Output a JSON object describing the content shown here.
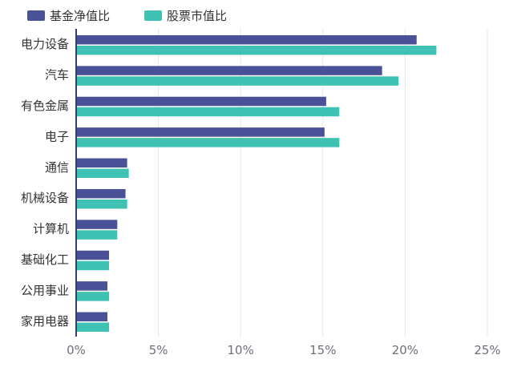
{
  "chart_data": {
    "type": "bar",
    "orientation": "horizontal",
    "categories": [
      "电力设备",
      "汽车",
      "有色金属",
      "电子",
      "通信",
      "机械设备",
      "计算机",
      "基础化工",
      "公用事业",
      "家用电器"
    ],
    "series": [
      {
        "name": "基金净值比",
        "color": "#4a5196",
        "values": [
          20.7,
          18.6,
          15.2,
          15.1,
          3.1,
          3.0,
          2.5,
          2.0,
          1.9,
          1.9
        ]
      },
      {
        "name": "股票市值比",
        "color": "#3fc1b3",
        "values": [
          21.9,
          19.6,
          16.0,
          16.0,
          3.2,
          3.1,
          2.5,
          2.0,
          2.0,
          2.0
        ]
      }
    ],
    "x_ticks": [
      "0%",
      "5%",
      "10%",
      "15%",
      "20%",
      "25%"
    ],
    "xlim": [
      0,
      25
    ],
    "grid": true,
    "legend_position": "top-left"
  }
}
